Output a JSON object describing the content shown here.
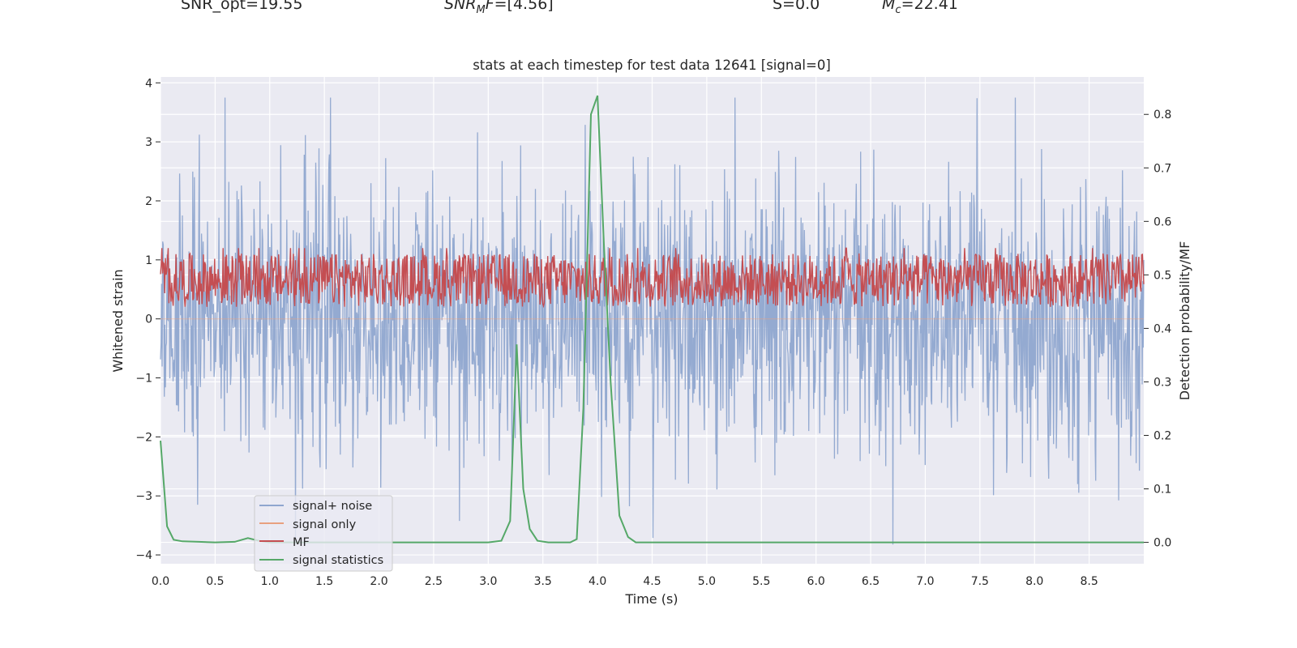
{
  "header": {
    "snr_opt": "SNR_opt=19.55",
    "snr_mf_prefix": "SNR",
    "snr_mf_sub": "M",
    "snr_mf_suffix": "F=[4.56]",
    "s_value": "S=0.0",
    "mc_prefix": "M",
    "mc_sub": "c",
    "mc_suffix": "=22.41"
  },
  "chart_data": {
    "type": "line",
    "title": "stats at each timestep for test data 12641 [signal=0]",
    "xlabel": "Time (s)",
    "ylabel_left": "Whitened strain",
    "ylabel_right": "Detection probability/MF",
    "xlim": [
      0.0,
      9.0
    ],
    "ylim_left": [
      -4.15,
      4.1
    ],
    "ylim_right": [
      -0.04,
      0.87
    ],
    "x_ticks": [
      "0.0",
      "0.5",
      "1.0",
      "1.5",
      "2.0",
      "2.5",
      "3.0",
      "3.5",
      "4.0",
      "4.5",
      "5.0",
      "5.5",
      "6.0",
      "6.5",
      "7.0",
      "7.5",
      "8.0",
      "8.5"
    ],
    "y_ticks_left": [
      "4",
      "3",
      "2",
      "1",
      "0",
      "−1",
      "−2",
      "−3",
      "−4"
    ],
    "y_ticks_right": [
      "0.8",
      "0.7",
      "0.6",
      "0.5",
      "0.4",
      "0.3",
      "0.2",
      "0.1",
      "0.0"
    ],
    "grid": true,
    "legend_position": "lower-left",
    "series": [
      {
        "name": "signal+ noise",
        "color": "#8fa6cf",
        "axis": "left",
        "type": "noise",
        "approx_range": [
          -4.0,
          3.75
        ]
      },
      {
        "name": "signal only",
        "color": "#e8a07f",
        "axis": "left",
        "type": "line",
        "x": [
          0.0,
          9.0
        ],
        "y": [
          0.0,
          0.0
        ]
      },
      {
        "name": "MF",
        "color": "#c44e52",
        "axis": "right",
        "type": "noise",
        "approx_range": [
          0.44,
          0.54
        ]
      },
      {
        "name": "signal statistics",
        "color": "#55a868",
        "axis": "right",
        "x": [
          0.0,
          0.06,
          0.12,
          0.2,
          0.35,
          0.5,
          0.68,
          0.8,
          0.9,
          1.0,
          1.5,
          2.0,
          2.5,
          3.0,
          3.12,
          3.2,
          3.26,
          3.32,
          3.38,
          3.45,
          3.55,
          3.75,
          3.81,
          3.87,
          3.94,
          4.0,
          4.06,
          4.12,
          4.2,
          4.28,
          4.35,
          5.0,
          6.0,
          7.0,
          8.0,
          9.0
        ],
        "y": [
          0.19,
          0.03,
          0.005,
          0.002,
          0.001,
          0.0,
          0.001,
          0.008,
          0.003,
          0.0,
          0.0,
          0.0,
          0.0,
          0.0,
          0.003,
          0.04,
          0.37,
          0.1,
          0.025,
          0.003,
          0.0,
          0.0,
          0.006,
          0.25,
          0.8,
          0.835,
          0.55,
          0.3,
          0.05,
          0.01,
          0.0,
          0.0,
          0.0,
          0.0,
          0.0,
          0.0
        ]
      }
    ]
  }
}
